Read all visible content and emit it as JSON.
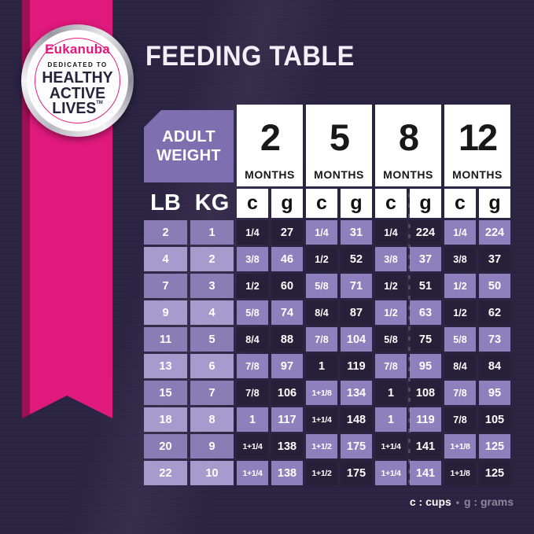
{
  "title": "FEEDING TABLE",
  "badge": {
    "brand": "Eukanuba",
    "dedicated": "DEDICATED TO",
    "line1": "HEALTHY",
    "line2": "ACTIVE",
    "line3": "LIVES",
    "trademark": "TM"
  },
  "table": {
    "adult_line1": "ADULT",
    "adult_line2": "WEIGHT",
    "months_label": "MONTHS",
    "months": [
      "2",
      "5",
      "8",
      "12"
    ],
    "weight_units": [
      "LB",
      "KG"
    ],
    "measure_units": [
      "c",
      "g"
    ]
  },
  "chart_data": {
    "type": "table",
    "title": "FEEDING TABLE",
    "column_groups": [
      "2 MONTHS",
      "5 MONTHS",
      "8 MONTHS",
      "12 MONTHS"
    ],
    "columns": [
      "LB",
      "KG",
      "c (2 mo)",
      "g (2 mo)",
      "c (5 mo)",
      "g (5 mo)",
      "c (8 mo)",
      "g (8 mo)",
      "c (12 mo)",
      "g (12 mo)"
    ],
    "rows": [
      [
        "2",
        "1",
        "1/4",
        "27",
        "1/4",
        "31",
        "1/4",
        "224",
        "1/4",
        "224"
      ],
      [
        "4",
        "2",
        "3/8",
        "46",
        "1/2",
        "52",
        "3/8",
        "37",
        "3/8",
        "37"
      ],
      [
        "7",
        "3",
        "1/2",
        "60",
        "5/8",
        "71",
        "1/2",
        "51",
        "1/2",
        "50"
      ],
      [
        "9",
        "4",
        "5/8",
        "74",
        "8/4",
        "87",
        "1/2",
        "63",
        "1/2",
        "62"
      ],
      [
        "11",
        "5",
        "8/4",
        "88",
        "7/8",
        "104",
        "5/8",
        "75",
        "5/8",
        "73"
      ],
      [
        "13",
        "6",
        "7/8",
        "97",
        "1",
        "119",
        "7/8",
        "95",
        "8/4",
        "84"
      ],
      [
        "15",
        "7",
        "7/8",
        "106",
        "1+1/8",
        "134",
        "1",
        "108",
        "7/8",
        "95"
      ],
      [
        "18",
        "8",
        "1",
        "117",
        "1+1/4",
        "148",
        "1",
        "119",
        "7/8",
        "105"
      ],
      [
        "20",
        "9",
        "1+1/4",
        "138",
        "1+1/2",
        "175",
        "1+1/4",
        "141",
        "1+1/8",
        "125"
      ],
      [
        "22",
        "10",
        "1+1/4",
        "138",
        "1+1/2",
        "175",
        "1+1/4",
        "141",
        "1+1/8",
        "125"
      ]
    ]
  },
  "legend": {
    "cups": "c : cups",
    "separator": "•",
    "grams": "g : grams"
  },
  "colors": {
    "background": "#2b2342",
    "ribbon_pink": "#e0197d",
    "ribbon_shadow": "#9c1054",
    "cell_dark": "#262039",
    "cell_light": "#8d80bc",
    "weight_cell_a": "#8a7db6",
    "weight_cell_b": "#a79bce",
    "adult_box": "#7e70b0",
    "month_box": "#ffffff",
    "month_text": "#181818",
    "title_text": "#f2f0f6",
    "legend_muted": "#8b87a0",
    "brand_pink": "#e2197c",
    "badge_text": "#26233a"
  }
}
